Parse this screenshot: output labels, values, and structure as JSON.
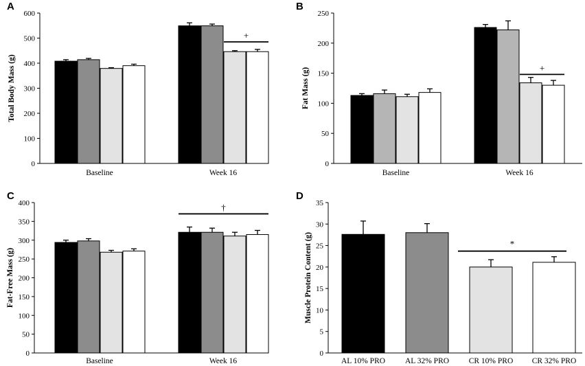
{
  "colors": {
    "AL 10% PRO": "#000000",
    "AL 32% PRO": "#8c8c8c",
    "CR 10% PRO": "#e3e3e3",
    "CR 32% PRO": "#ffffff",
    "B_AL 32% PRO": "#b5b5b5"
  },
  "chart_data": [
    {
      "panel": "A",
      "type": "bar",
      "ylabel": "Total Body Mass (g)",
      "ylim": [
        0,
        600
      ],
      "yticks": [
        0,
        100,
        200,
        300,
        400,
        500,
        600
      ],
      "categories": [
        "Baseline",
        "Week 16"
      ],
      "series": [
        {
          "name": "AL 10% PRO",
          "values": [
            408,
            549
          ],
          "errors": [
            6,
            12
          ]
        },
        {
          "name": "AL 32% PRO",
          "values": [
            414,
            549
          ],
          "errors": [
            5,
            7
          ]
        },
        {
          "name": "CR 10% PRO",
          "values": [
            379,
            446
          ],
          "errors": [
            3,
            4
          ]
        },
        {
          "name": "CR 32% PRO",
          "values": [
            390,
            446
          ],
          "errors": [
            6,
            9
          ]
        }
      ],
      "significance": [
        {
          "label": "+",
          "group": 1,
          "from_series": 2,
          "to_series": 3,
          "y": 485
        }
      ]
    },
    {
      "panel": "B",
      "type": "bar",
      "ylabel": "Fat Mass (g)",
      "ylim": [
        0,
        250
      ],
      "yticks": [
        0,
        50,
        100,
        150,
        200,
        250
      ],
      "categories": [
        "Baseline",
        "Week 16"
      ],
      "series": [
        {
          "name": "AL 10% PRO",
          "values": [
            113,
            226
          ],
          "errors": [
            3,
            5
          ]
        },
        {
          "name": "AL 32% PRO",
          "values": [
            116,
            222
          ],
          "errors": [
            6,
            15
          ]
        },
        {
          "name": "CR 10% PRO",
          "values": [
            111,
            134
          ],
          "errors": [
            4,
            9
          ]
        },
        {
          "name": "CR 32% PRO",
          "values": [
            118,
            130
          ],
          "errors": [
            6,
            8
          ]
        }
      ],
      "significance": [
        {
          "label": "+",
          "group": 1,
          "from_series": 2,
          "to_series": 3,
          "y": 148
        }
      ]
    },
    {
      "panel": "C",
      "type": "bar",
      "ylabel": "Fat-Free Mass (g)",
      "ylim": [
        0,
        400
      ],
      "yticks": [
        0,
        50,
        100,
        150,
        200,
        250,
        300,
        350,
        400
      ],
      "categories": [
        "Baseline",
        "Week 16"
      ],
      "series": [
        {
          "name": "AL 10% PRO",
          "values": [
            294,
            321
          ],
          "errors": [
            6,
            14
          ]
        },
        {
          "name": "AL 32% PRO",
          "values": [
            298,
            321
          ],
          "errors": [
            6,
            11
          ]
        },
        {
          "name": "CR 10% PRO",
          "values": [
            268,
            311
          ],
          "errors": [
            5,
            10
          ]
        },
        {
          "name": "CR 32% PRO",
          "values": [
            271,
            315
          ],
          "errors": [
            6,
            11
          ]
        }
      ],
      "significance": [
        {
          "label": "†",
          "group": 1,
          "from_series": 0,
          "to_series": 3,
          "y": 370
        }
      ]
    },
    {
      "panel": "D",
      "type": "bar",
      "ylabel": "Muscle Protein Content (g)",
      "ylim": [
        0,
        35
      ],
      "yticks": [
        0,
        5,
        10,
        15,
        20,
        25,
        30,
        35
      ],
      "categories": [
        "AL 10% PRO",
        "AL 32% PRO",
        "CR 10% PRO",
        "CR 32% PRO"
      ],
      "series": [
        {
          "name": "Muscle protein",
          "values": [
            27.6,
            28.0,
            20.0,
            21.1
          ],
          "errors": [
            3.1,
            2.1,
            1.7,
            1.3
          ]
        }
      ],
      "significance": [
        {
          "label": "*",
          "from_category": 2,
          "to_category": 3,
          "y": 23.7
        }
      ]
    }
  ]
}
